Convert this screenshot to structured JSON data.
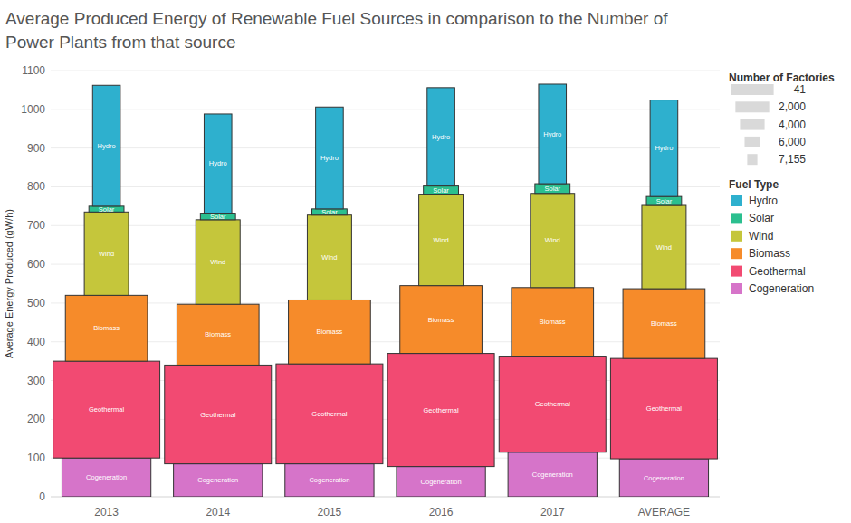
{
  "chart_data": {
    "type": "bar",
    "stacked": true,
    "title": "Average Produced Energy of Renewable Fuel Sources in comparison to the Number of Power Plants from that source",
    "y_label": "Average Energy Produced (gW/h)",
    "categories": [
      "2013",
      "2014",
      "2015",
      "2016",
      "2017",
      "AVERAGE"
    ],
    "series": [
      {
        "name": "Cogeneration",
        "color": "#d674c9",
        "values": [
          100,
          85,
          85,
          78,
          115,
          98
        ],
        "factories": [
          1600,
          1600,
          1600,
          1600,
          1600,
          1600
        ]
      },
      {
        "name": "Geothermal",
        "color": "#f24a72",
        "values": [
          250,
          255,
          258,
          292,
          248,
          259
        ],
        "factories": [
          41,
          41,
          41,
          41,
          41,
          41
        ]
      },
      {
        "name": "Biomass",
        "color": "#f68b2a",
        "values": [
          170,
          157,
          165,
          175,
          177,
          180
        ],
        "factories": [
          2200,
          2200,
          2200,
          2200,
          2200,
          2200
        ]
      },
      {
        "name": "Wind",
        "color": "#c5c63b",
        "values": [
          215,
          218,
          219,
          236,
          243,
          215
        ],
        "factories": [
          5500,
          5500,
          5500,
          5500,
          5500,
          5500
        ]
      },
      {
        "name": "Solar",
        "color": "#2bbf8f",
        "values": [
          15,
          17,
          16,
          21,
          25,
          23
        ],
        "factories": [
          6300,
          6300,
          6300,
          6300,
          6300,
          6300
        ]
      },
      {
        "name": "Hydro",
        "color": "#2eb0ce",
        "values": [
          312,
          256,
          263,
          254,
          257,
          249
        ],
        "factories": [
          6950,
          6950,
          6950,
          6950,
          6950,
          6950
        ]
      }
    ],
    "ylim": [
      0,
      1100
    ],
    "yticks": [
      0,
      100,
      200,
      300,
      400,
      500,
      600,
      700,
      800,
      900,
      1000,
      1100
    ],
    "grid": true,
    "legend": "right",
    "legend_title": "Fuel Type",
    "size_legend": {
      "title": "Number of Factories",
      "values": [
        41,
        {
          "value": 2000,
          "label": "2,000"
        },
        {
          "value": 4000,
          "label": "4,000"
        },
        {
          "value": 6000,
          "label": "6,000"
        },
        {
          "value": 7155,
          "label": "7,155"
        }
      ]
    }
  }
}
